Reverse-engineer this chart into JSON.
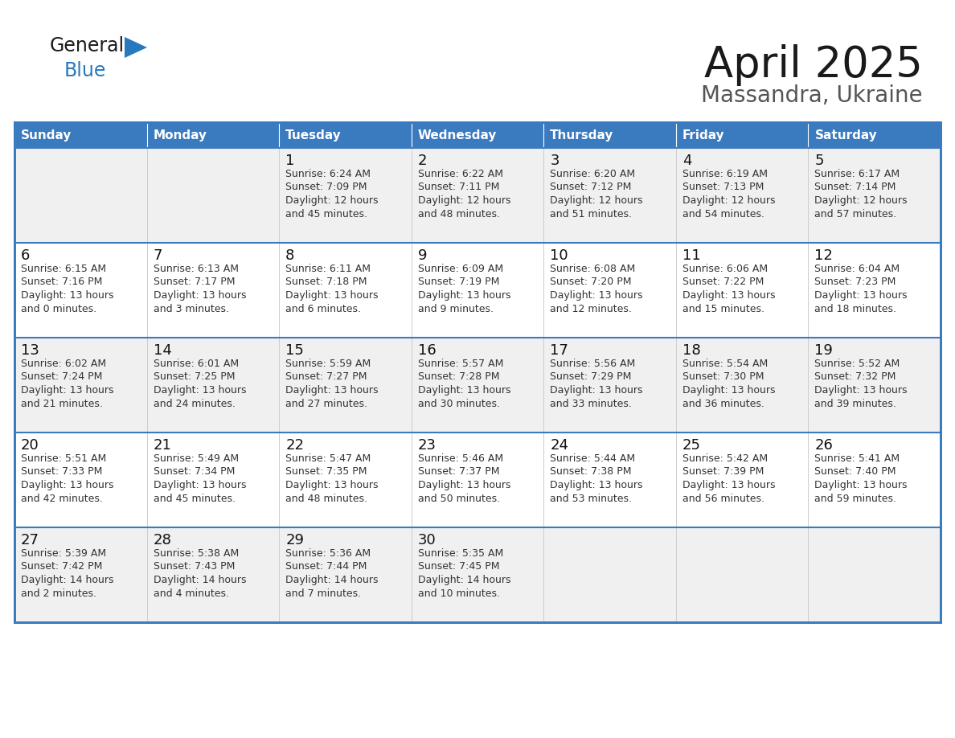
{
  "title": "April 2025",
  "subtitle": "Massandra, Ukraine",
  "days_of_week": [
    "Sunday",
    "Monday",
    "Tuesday",
    "Wednesday",
    "Thursday",
    "Friday",
    "Saturday"
  ],
  "header_bg": "#3a7abf",
  "header_text": "#ffffff",
  "cell_bg_even_row": "#f0f0f0",
  "cell_bg_odd_row": "#ffffff",
  "border_color": "#3a7abf",
  "row_line_color": "#3a7abf",
  "text_color": "#333333",
  "logo_general_color": "#1a1a1a",
  "logo_blue_color": "#2878c0",
  "logo_triangle_color": "#2878c0",
  "weeks": [
    [
      {
        "day": "",
        "lines": []
      },
      {
        "day": "",
        "lines": []
      },
      {
        "day": "1",
        "lines": [
          "Sunrise: 6:24 AM",
          "Sunset: 7:09 PM",
          "Daylight: 12 hours",
          "and 45 minutes."
        ]
      },
      {
        "day": "2",
        "lines": [
          "Sunrise: 6:22 AM",
          "Sunset: 7:11 PM",
          "Daylight: 12 hours",
          "and 48 minutes."
        ]
      },
      {
        "day": "3",
        "lines": [
          "Sunrise: 6:20 AM",
          "Sunset: 7:12 PM",
          "Daylight: 12 hours",
          "and 51 minutes."
        ]
      },
      {
        "day": "4",
        "lines": [
          "Sunrise: 6:19 AM",
          "Sunset: 7:13 PM",
          "Daylight: 12 hours",
          "and 54 minutes."
        ]
      },
      {
        "day": "5",
        "lines": [
          "Sunrise: 6:17 AM",
          "Sunset: 7:14 PM",
          "Daylight: 12 hours",
          "and 57 minutes."
        ]
      }
    ],
    [
      {
        "day": "6",
        "lines": [
          "Sunrise: 6:15 AM",
          "Sunset: 7:16 PM",
          "Daylight: 13 hours",
          "and 0 minutes."
        ]
      },
      {
        "day": "7",
        "lines": [
          "Sunrise: 6:13 AM",
          "Sunset: 7:17 PM",
          "Daylight: 13 hours",
          "and 3 minutes."
        ]
      },
      {
        "day": "8",
        "lines": [
          "Sunrise: 6:11 AM",
          "Sunset: 7:18 PM",
          "Daylight: 13 hours",
          "and 6 minutes."
        ]
      },
      {
        "day": "9",
        "lines": [
          "Sunrise: 6:09 AM",
          "Sunset: 7:19 PM",
          "Daylight: 13 hours",
          "and 9 minutes."
        ]
      },
      {
        "day": "10",
        "lines": [
          "Sunrise: 6:08 AM",
          "Sunset: 7:20 PM",
          "Daylight: 13 hours",
          "and 12 minutes."
        ]
      },
      {
        "day": "11",
        "lines": [
          "Sunrise: 6:06 AM",
          "Sunset: 7:22 PM",
          "Daylight: 13 hours",
          "and 15 minutes."
        ]
      },
      {
        "day": "12",
        "lines": [
          "Sunrise: 6:04 AM",
          "Sunset: 7:23 PM",
          "Daylight: 13 hours",
          "and 18 minutes."
        ]
      }
    ],
    [
      {
        "day": "13",
        "lines": [
          "Sunrise: 6:02 AM",
          "Sunset: 7:24 PM",
          "Daylight: 13 hours",
          "and 21 minutes."
        ]
      },
      {
        "day": "14",
        "lines": [
          "Sunrise: 6:01 AM",
          "Sunset: 7:25 PM",
          "Daylight: 13 hours",
          "and 24 minutes."
        ]
      },
      {
        "day": "15",
        "lines": [
          "Sunrise: 5:59 AM",
          "Sunset: 7:27 PM",
          "Daylight: 13 hours",
          "and 27 minutes."
        ]
      },
      {
        "day": "16",
        "lines": [
          "Sunrise: 5:57 AM",
          "Sunset: 7:28 PM",
          "Daylight: 13 hours",
          "and 30 minutes."
        ]
      },
      {
        "day": "17",
        "lines": [
          "Sunrise: 5:56 AM",
          "Sunset: 7:29 PM",
          "Daylight: 13 hours",
          "and 33 minutes."
        ]
      },
      {
        "day": "18",
        "lines": [
          "Sunrise: 5:54 AM",
          "Sunset: 7:30 PM",
          "Daylight: 13 hours",
          "and 36 minutes."
        ]
      },
      {
        "day": "19",
        "lines": [
          "Sunrise: 5:52 AM",
          "Sunset: 7:32 PM",
          "Daylight: 13 hours",
          "and 39 minutes."
        ]
      }
    ],
    [
      {
        "day": "20",
        "lines": [
          "Sunrise: 5:51 AM",
          "Sunset: 7:33 PM",
          "Daylight: 13 hours",
          "and 42 minutes."
        ]
      },
      {
        "day": "21",
        "lines": [
          "Sunrise: 5:49 AM",
          "Sunset: 7:34 PM",
          "Daylight: 13 hours",
          "and 45 minutes."
        ]
      },
      {
        "day": "22",
        "lines": [
          "Sunrise: 5:47 AM",
          "Sunset: 7:35 PM",
          "Daylight: 13 hours",
          "and 48 minutes."
        ]
      },
      {
        "day": "23",
        "lines": [
          "Sunrise: 5:46 AM",
          "Sunset: 7:37 PM",
          "Daylight: 13 hours",
          "and 50 minutes."
        ]
      },
      {
        "day": "24",
        "lines": [
          "Sunrise: 5:44 AM",
          "Sunset: 7:38 PM",
          "Daylight: 13 hours",
          "and 53 minutes."
        ]
      },
      {
        "day": "25",
        "lines": [
          "Sunrise: 5:42 AM",
          "Sunset: 7:39 PM",
          "Daylight: 13 hours",
          "and 56 minutes."
        ]
      },
      {
        "day": "26",
        "lines": [
          "Sunrise: 5:41 AM",
          "Sunset: 7:40 PM",
          "Daylight: 13 hours",
          "and 59 minutes."
        ]
      }
    ],
    [
      {
        "day": "27",
        "lines": [
          "Sunrise: 5:39 AM",
          "Sunset: 7:42 PM",
          "Daylight: 14 hours",
          "and 2 minutes."
        ]
      },
      {
        "day": "28",
        "lines": [
          "Sunrise: 5:38 AM",
          "Sunset: 7:43 PM",
          "Daylight: 14 hours",
          "and 4 minutes."
        ]
      },
      {
        "day": "29",
        "lines": [
          "Sunrise: 5:36 AM",
          "Sunset: 7:44 PM",
          "Daylight: 14 hours",
          "and 7 minutes."
        ]
      },
      {
        "day": "30",
        "lines": [
          "Sunrise: 5:35 AM",
          "Sunset: 7:45 PM",
          "Daylight: 14 hours",
          "and 10 minutes."
        ]
      },
      {
        "day": "",
        "lines": []
      },
      {
        "day": "",
        "lines": []
      },
      {
        "day": "",
        "lines": []
      }
    ]
  ]
}
